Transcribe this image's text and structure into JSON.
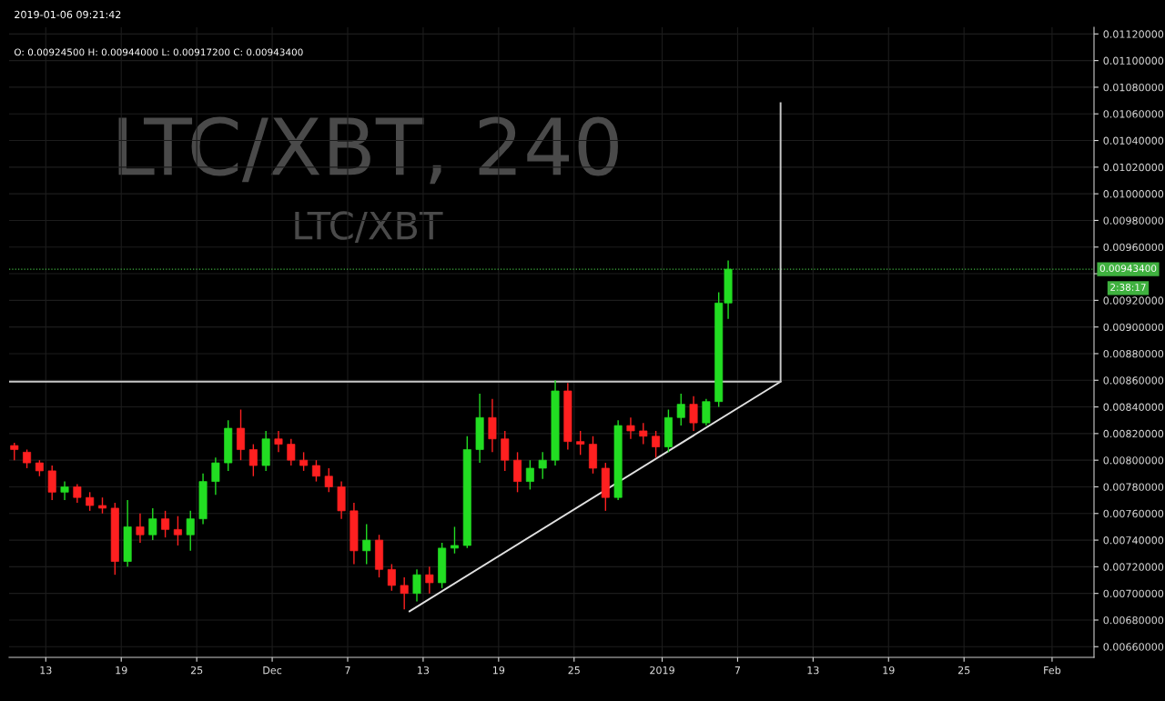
{
  "chart_data": {
    "type": "candlestick",
    "annotations": [
      "2019-01-06 09:21:42",
      "O: 0.00924500 H: 0.00944000 L: 0.00917200 C: 0.00943400",
      "LTC/XBT, 240",
      "LTC/XBT",
      "2:38:17"
    ],
    "x": [
      "2018-11-10T12:00",
      "2018-11-11T12:00",
      "2018-11-12T12:00",
      "2018-11-13T12:00",
      "2018-11-14T12:00",
      "2018-11-15T12:00",
      "2018-11-16T12:00",
      "2018-11-17T12:00",
      "2018-11-18T12:00",
      "2018-11-19T12:00",
      "2018-11-20T12:00",
      "2018-11-21T12:00",
      "2018-11-22T12:00",
      "2018-11-23T12:00",
      "2018-11-24T12:00",
      "2018-11-25T12:00",
      "2018-11-26T12:00",
      "2018-11-27T12:00",
      "2018-11-28T12:00",
      "2018-11-29T12:00",
      "2018-11-30T12:00",
      "2018-12-01T12:00",
      "2018-12-02T12:00",
      "2018-12-03T12:00",
      "2018-12-04T12:00",
      "2018-12-05T12:00",
      "2018-12-06T12:00",
      "2018-12-07T12:00",
      "2018-12-08T12:00",
      "2018-12-09T12:00",
      "2018-12-10T12:00",
      "2018-12-11T12:00",
      "2018-12-12T12:00",
      "2018-12-13T12:00",
      "2018-12-14T12:00",
      "2018-12-15T12:00",
      "2018-12-16T12:00",
      "2018-12-17T12:00",
      "2018-12-18T12:00",
      "2018-12-19T12:00",
      "2018-12-20T12:00",
      "2018-12-21T12:00",
      "2018-12-22T12:00",
      "2018-12-23T12:00",
      "2018-12-24T12:00",
      "2018-12-25T12:00",
      "2018-12-26T12:00",
      "2018-12-27T12:00",
      "2018-12-28T12:00",
      "2018-12-29T12:00",
      "2018-12-30T12:00",
      "2018-12-31T12:00",
      "2019-01-01T12:00",
      "2019-01-02T12:00",
      "2019-01-03T12:00",
      "2019-01-04T12:00",
      "2019-01-05T12:00",
      "2019-01-06T06:00"
    ],
    "ohlc": [
      [
        0.00811,
        0.00813,
        0.008,
        0.00808
      ],
      [
        0.00806,
        0.00808,
        0.00794,
        0.00798
      ],
      [
        0.00798,
        0.008,
        0.00788,
        0.00792
      ],
      [
        0.00792,
        0.00796,
        0.0077,
        0.00776
      ],
      [
        0.00776,
        0.00784,
        0.0077,
        0.0078
      ],
      [
        0.0078,
        0.00782,
        0.00768,
        0.00772
      ],
      [
        0.00772,
        0.00776,
        0.00762,
        0.00766
      ],
      [
        0.00766,
        0.00772,
        0.0076,
        0.00764
      ],
      [
        0.00764,
        0.00768,
        0.00714,
        0.00724
      ],
      [
        0.00724,
        0.0077,
        0.0072,
        0.0075
      ],
      [
        0.0075,
        0.0076,
        0.00738,
        0.00744
      ],
      [
        0.00744,
        0.00764,
        0.0074,
        0.00756
      ],
      [
        0.00756,
        0.00762,
        0.00742,
        0.00748
      ],
      [
        0.00748,
        0.00758,
        0.00736,
        0.00744
      ],
      [
        0.00744,
        0.00762,
        0.00732,
        0.00756
      ],
      [
        0.00756,
        0.0079,
        0.00752,
        0.00784
      ],
      [
        0.00784,
        0.00802,
        0.00774,
        0.00798
      ],
      [
        0.00798,
        0.0083,
        0.00792,
        0.00824
      ],
      [
        0.00824,
        0.00838,
        0.008,
        0.00808
      ],
      [
        0.00808,
        0.00812,
        0.00788,
        0.00796
      ],
      [
        0.00796,
        0.00822,
        0.00792,
        0.00816
      ],
      [
        0.00816,
        0.00822,
        0.00806,
        0.00812
      ],
      [
        0.00812,
        0.00816,
        0.00796,
        0.008
      ],
      [
        0.008,
        0.00806,
        0.00792,
        0.00796
      ],
      [
        0.00796,
        0.008,
        0.00784,
        0.00788
      ],
      [
        0.00788,
        0.00794,
        0.00776,
        0.0078
      ],
      [
        0.0078,
        0.00784,
        0.00756,
        0.00762
      ],
      [
        0.00762,
        0.00768,
        0.00722,
        0.00732
      ],
      [
        0.00732,
        0.00752,
        0.00722,
        0.0074
      ],
      [
        0.0074,
        0.00744,
        0.00712,
        0.00718
      ],
      [
        0.00718,
        0.00722,
        0.00702,
        0.00706
      ],
      [
        0.00706,
        0.00712,
        0.00688,
        0.007
      ],
      [
        0.007,
        0.00718,
        0.00694,
        0.00714
      ],
      [
        0.00714,
        0.0072,
        0.007,
        0.00708
      ],
      [
        0.00708,
        0.00738,
        0.00704,
        0.00734
      ],
      [
        0.00734,
        0.0075,
        0.0073,
        0.00736
      ],
      [
        0.00736,
        0.00818,
        0.00734,
        0.00808
      ],
      [
        0.00808,
        0.0085,
        0.00798,
        0.00832
      ],
      [
        0.00832,
        0.00846,
        0.00806,
        0.00816
      ],
      [
        0.00816,
        0.00822,
        0.00792,
        0.008
      ],
      [
        0.008,
        0.00806,
        0.00776,
        0.00784
      ],
      [
        0.00784,
        0.008,
        0.00778,
        0.00794
      ],
      [
        0.00794,
        0.00806,
        0.00786,
        0.008
      ],
      [
        0.008,
        0.0086,
        0.00796,
        0.00852
      ],
      [
        0.00852,
        0.00858,
        0.00808,
        0.00814
      ],
      [
        0.00814,
        0.00822,
        0.00804,
        0.00812
      ],
      [
        0.00812,
        0.00818,
        0.0079,
        0.00794
      ],
      [
        0.00794,
        0.00798,
        0.00762,
        0.00772
      ],
      [
        0.00772,
        0.0083,
        0.0077,
        0.00826
      ],
      [
        0.00826,
        0.00832,
        0.00816,
        0.00822
      ],
      [
        0.00822,
        0.00828,
        0.00812,
        0.00818
      ],
      [
        0.00818,
        0.00822,
        0.00802,
        0.0081
      ],
      [
        0.0081,
        0.00838,
        0.00806,
        0.00832
      ],
      [
        0.00832,
        0.0085,
        0.00826,
        0.00842
      ],
      [
        0.00842,
        0.00848,
        0.00822,
        0.00828
      ],
      [
        0.00828,
        0.00846,
        0.00826,
        0.00844
      ],
      [
        0.00844,
        0.00926,
        0.0084,
        0.00918
      ],
      [
        0.00918,
        0.0095,
        0.00906,
        0.009434
      ]
    ],
    "colors": [
      "#ff2020",
      "#ff2020",
      "#ff2020",
      "#ff2020",
      "#22dd22",
      "#ff2020",
      "#ff2020",
      "#ff2020",
      "#ff2020",
      "#22dd22",
      "#ff2020",
      "#22dd22",
      "#ff2020",
      "#ff2020",
      "#22dd22",
      "#22dd22",
      "#22dd22",
      "#22dd22",
      "#ff2020",
      "#ff2020",
      "#22dd22",
      "#ff2020",
      "#ff2020",
      "#ff2020",
      "#ff2020",
      "#ff2020",
      "#ff2020",
      "#ff2020",
      "#22dd22",
      "#ff2020",
      "#ff2020",
      "#ff2020",
      "#22dd22",
      "#ff2020",
      "#22dd22",
      "#22dd22",
      "#22dd22",
      "#22dd22",
      "#ff2020",
      "#ff2020",
      "#ff2020",
      "#22dd22",
      "#22dd22",
      "#22dd22",
      "#ff2020",
      "#ff2020",
      "#ff2020",
      "#ff2020",
      "#22dd22",
      "#ff2020",
      "#ff2020",
      "#ff2020",
      "#22dd22",
      "#22dd22",
      "#ff2020",
      "#22dd22",
      "#22dd22",
      "#22dd22"
    ],
    "series": [
      {
        "type": "line",
        "color": "#e0e0e0",
        "x": [
          "2018-12-11T22:00",
          "2019-01-10T10:00"
        ],
        "values": [
          0.006866,
          0.00859
        ]
      },
      {
        "type": "line",
        "color": "#c8c8c8",
        "x": [
          "2018-11-10T02:00",
          "2019-01-10T10:00",
          "2019-01-10T10:00"
        ],
        "values": [
          0.00859,
          0.00859,
          0.01068
        ]
      }
    ],
    "ref_lines": [
      {
        "axis": "y",
        "value": 0.009434,
        "label": "0.00943400",
        "color": "#3fb13f",
        "line_style": "dotted"
      }
    ],
    "xlim": [
      "2018-11-10T02:00",
      "2019-02-04T08:00"
    ],
    "xticks": [
      {
        "value": "2018-11-13",
        "label": "13"
      },
      {
        "value": "2018-11-19",
        "label": "19"
      },
      {
        "value": "2018-11-25",
        "label": "25"
      },
      {
        "value": "2018-12-01",
        "label": "Dec"
      },
      {
        "value": "2018-12-07",
        "label": "7"
      },
      {
        "value": "2018-12-13",
        "label": "13"
      },
      {
        "value": "2018-12-19",
        "label": "19"
      },
      {
        "value": "2018-12-25",
        "label": "25"
      },
      {
        "value": "2019-01-01",
        "label": "2019"
      },
      {
        "value": "2019-01-07",
        "label": "7"
      },
      {
        "value": "2019-01-13",
        "label": "13"
      },
      {
        "value": "2019-01-19",
        "label": "19"
      },
      {
        "value": "2019-01-25",
        "label": "25"
      },
      {
        "value": "2019-02-01",
        "label": "Feb"
      }
    ],
    "ylim": [
      0.00652,
      0.01125
    ],
    "yticks": [
      {
        "value": 0.0066,
        "label": "0.00660000"
      },
      {
        "value": 0.0068,
        "label": "0.00680000"
      },
      {
        "value": 0.007,
        "label": "0.00700000"
      },
      {
        "value": 0.0072,
        "label": "0.00720000"
      },
      {
        "value": 0.0074,
        "label": "0.00740000"
      },
      {
        "value": 0.0076,
        "label": "0.00760000"
      },
      {
        "value": 0.0078,
        "label": "0.00780000"
      },
      {
        "value": 0.008,
        "label": "0.00800000"
      },
      {
        "value": 0.0082,
        "label": "0.00820000"
      },
      {
        "value": 0.0084,
        "label": "0.00840000"
      },
      {
        "value": 0.0086,
        "label": "0.00860000"
      },
      {
        "value": 0.0088,
        "label": "0.00880000"
      },
      {
        "value": 0.009,
        "label": "0.00900000"
      },
      {
        "value": 0.0092,
        "label": "0.00920000"
      },
      {
        "value": 0.0094,
        "label": null
      },
      {
        "value": 0.0096,
        "label": "0.00960000"
      },
      {
        "value": 0.0098,
        "label": "0.00980000"
      },
      {
        "value": 0.01,
        "label": "0.01000000"
      },
      {
        "value": 0.0102,
        "label": "0.01020000"
      },
      {
        "value": 0.0104,
        "label": "0.01040000"
      },
      {
        "value": 0.0106,
        "label": "0.01060000"
      },
      {
        "value": 0.0108,
        "label": "0.01080000"
      },
      {
        "value": 0.011,
        "label": "0.01100000"
      },
      {
        "value": 0.0112,
        "label": "0.01120000"
      }
    ],
    "grid": true
  }
}
